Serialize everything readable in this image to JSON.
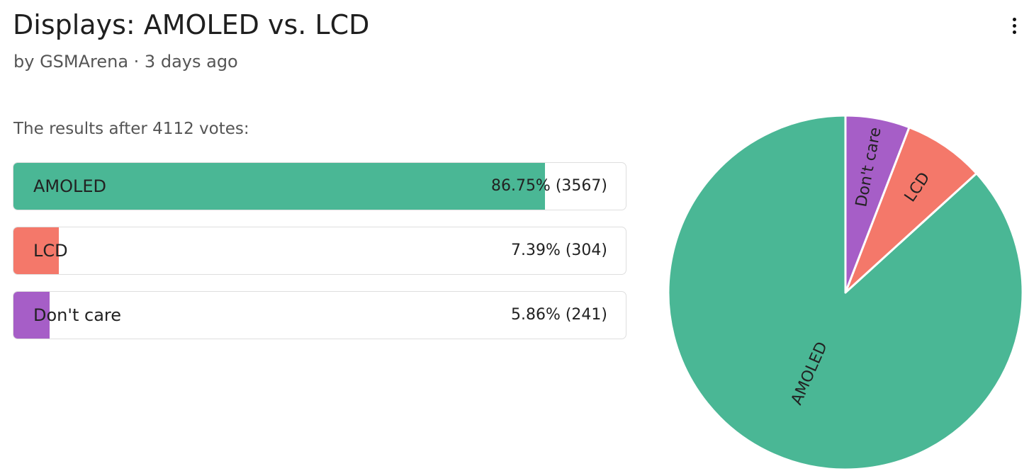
{
  "header": {
    "title": "Displays: AMOLED vs. LCD",
    "byline": "by GSMArena · 3 days ago",
    "more_icon": "more-vertical-icon"
  },
  "poll": {
    "summary": "The results after 4112 votes:",
    "options": [
      {
        "label": "AMOLED",
        "result": "86.75% (3567)"
      },
      {
        "label": "LCD",
        "result": "7.39% (304)"
      },
      {
        "label": "Don't care",
        "result": "5.86% (241)"
      }
    ]
  },
  "chart_data": {
    "type": "pie",
    "total_votes": 4112,
    "categories": [
      "AMOLED",
      "LCD",
      "Don't care"
    ],
    "values": [
      86.75,
      7.39,
      5.86
    ],
    "votes": [
      3567,
      304,
      241
    ],
    "colors": [
      "#4ab795",
      "#f4786a",
      "#a65ec7"
    ],
    "start": "12 o'clock",
    "direction": "counter-clockwise"
  }
}
